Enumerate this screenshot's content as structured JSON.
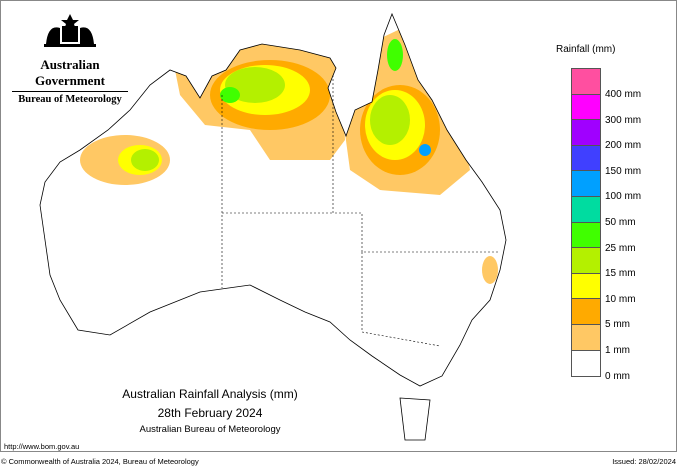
{
  "header": {
    "government": "Australian Government",
    "agency": "Bureau of Meteorology"
  },
  "legend": {
    "title": "Rainfall (mm)",
    "colors": [
      "#ff4fa0",
      "#ff00ff",
      "#a000ff",
      "#4040ff",
      "#00a0ff",
      "#00dca0",
      "#40ff00",
      "#b4f000",
      "#ffff00",
      "#ffaa00",
      "#ffc864",
      "#ffffff"
    ],
    "labels": [
      "400 mm",
      "300 mm",
      "200 mm",
      "150 mm",
      "100 mm",
      "50 mm",
      "25 mm",
      "15 mm",
      "10 mm",
      "5 mm",
      "1 mm",
      "0 mm"
    ]
  },
  "title": {
    "line1": "Australian Rainfall Analysis (mm)",
    "line2": "28th February 2024",
    "line3": "Australian Bureau of Meteorology"
  },
  "footer": {
    "url": "http://www.bom.gov.au",
    "copyright": "© Commonwealth of Australia 2024, Bureau of Meteorology",
    "issued": "Issued: 28/02/2024"
  }
}
